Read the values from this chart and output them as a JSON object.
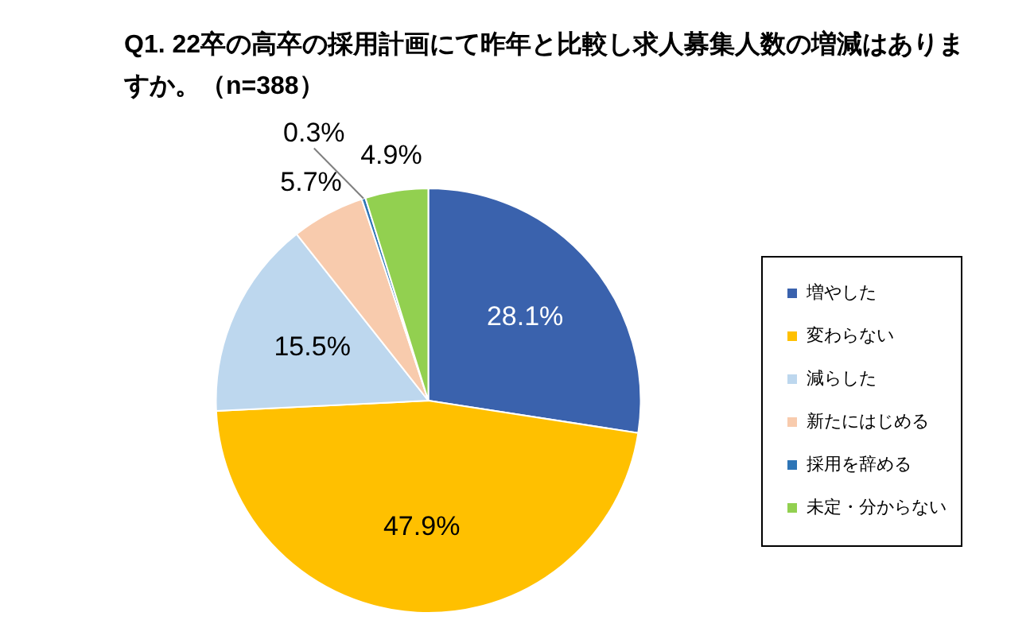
{
  "chart_data": {
    "type": "pie",
    "title": "Q1. 22卒の高卒の採用計画にて昨年と比較し求人募集人数の増減はありますか。（n=388）",
    "categories": [
      "増やした",
      "変わらない",
      "減らした",
      "新たにはじめる",
      "採用を辞める",
      "未定・分からない"
    ],
    "values": [
      28.1,
      47.9,
      15.5,
      5.7,
      0.3,
      4.9
    ],
    "colors": [
      "#3a62ad",
      "#ffc000",
      "#bdd7ee",
      "#f8cbad",
      "#2e75b6",
      "#92d050"
    ],
    "value_labels": [
      "28.1%",
      "47.9%",
      "15.5%",
      "5.7%",
      "0.3%",
      "4.9%"
    ],
    "legend": "right"
  }
}
